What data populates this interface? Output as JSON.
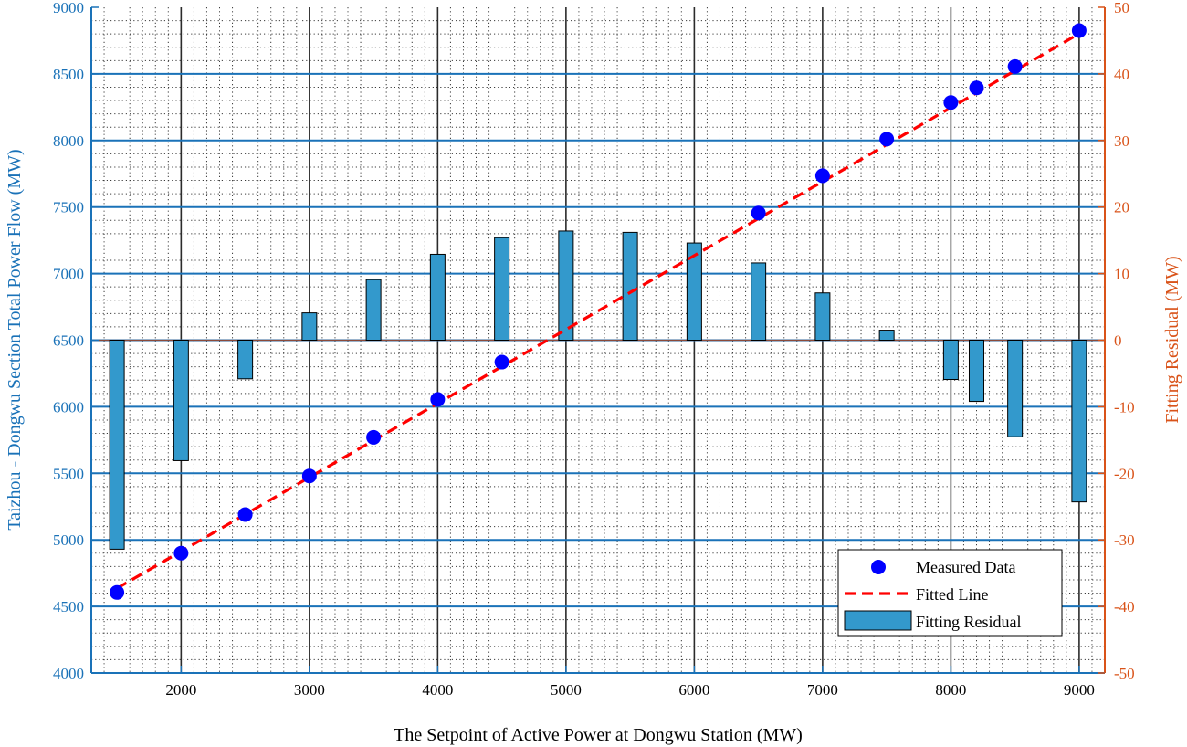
{
  "chart_data": {
    "type": "bar",
    "xlabel": "The Setpoint of Active Power at Dongwu Station (MW)",
    "ylabel_left": "Taizhou - Dongwu Section Total Power Flow (MW)",
    "ylabel_right": "Fitting Residual (MW)",
    "xlim": [
      1300,
      9200
    ],
    "ylim_left": [
      4000,
      9000
    ],
    "ylim_right": [
      -50,
      50
    ],
    "x_ticks": [
      2000,
      3000,
      4000,
      5000,
      6000,
      7000,
      8000,
      9000
    ],
    "y_left_ticks": [
      4000,
      4500,
      5000,
      5500,
      6000,
      6500,
      7000,
      7500,
      8000,
      8500,
      9000
    ],
    "y_right_ticks": [
      -50,
      -40,
      -30,
      -20,
      -10,
      0,
      10,
      20,
      30,
      40,
      50
    ],
    "grid": true,
    "legend_position": "bottom-right",
    "colors": {
      "left_axis": "#1a72b8",
      "right_axis": "#d95319",
      "measured": "#0000ff",
      "fitted": "#ff0000",
      "residual": "#3399cc"
    },
    "series": [
      {
        "name": "Measured Data",
        "kind": "scatter",
        "axis": "left",
        "x": [
          1500,
          2000,
          2500,
          3000,
          3500,
          4000,
          4500,
          6500,
          7000,
          7500,
          8000,
          8200,
          8500,
          9000
        ],
        "y": [
          4605,
          4900,
          5190,
          5480,
          5770,
          6055,
          6335,
          7455,
          7735,
          8010,
          8285,
          8395,
          8555,
          8825
        ]
      },
      {
        "name": "Fitted Line",
        "kind": "line",
        "axis": "left",
        "x": [
          1500,
          9000
        ],
        "y": [
          4636,
          8802
        ]
      },
      {
        "name": "Fitting Residual",
        "kind": "bar",
        "axis": "right",
        "x": [
          1500,
          2000,
          2500,
          3000,
          3500,
          4000,
          4500,
          5000,
          5500,
          6000,
          6500,
          7000,
          7500,
          8000,
          8200,
          8500,
          9000
        ],
        "y": [
          -31.4,
          -18.1,
          -5.8,
          4.1,
          9.1,
          12.9,
          15.4,
          16.4,
          16.2,
          14.6,
          11.6,
          7.1,
          1.5,
          -5.9,
          -9.2,
          -14.5,
          -24.3
        ]
      }
    ]
  }
}
